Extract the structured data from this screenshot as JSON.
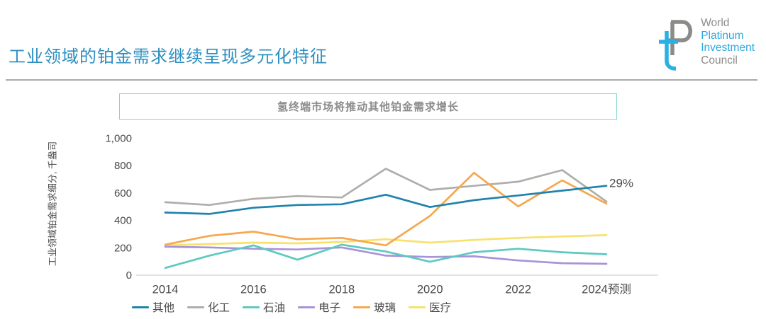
{
  "header": {
    "title": "工业领域的铂金需求继续呈现多元化特征",
    "title_color": "#2e8fc0"
  },
  "logo": {
    "name": "World Platinum Investment Council",
    "mark_icon": "wpic-tp-monogram",
    "mark_colors": {
      "p": "#8b8b88",
      "t": "#29b0e4"
    },
    "lines": [
      {
        "text": "World",
        "color": "#8b8b88"
      },
      {
        "text": "Platinum",
        "color": "#29a8df"
      },
      {
        "text": "Investment",
        "color": "#29a8df"
      },
      {
        "text": "Council",
        "color": "#8b8b88"
      }
    ]
  },
  "chart_box": {
    "title": "氢终端市场将推动其他铂金需求增长",
    "border_color": "#82d5d0"
  },
  "chart_data": {
    "type": "line",
    "title": "氢终端市场将推动其他铂金需求增长",
    "xlabel": "",
    "ylabel": "工业领域铂金需求细分, 千盎司",
    "x": [
      2014,
      2015,
      2016,
      2017,
      2018,
      2019,
      2020,
      2021,
      2022,
      2023,
      2024
    ],
    "x_tick_labels": [
      {
        "x": 2014,
        "label": "2014"
      },
      {
        "x": 2016,
        "label": "2016"
      },
      {
        "x": 2018,
        "label": "2018"
      },
      {
        "x": 2020,
        "label": "2020"
      },
      {
        "x": 2022,
        "label": "2022"
      },
      {
        "x": 2024,
        "label": "2024预测"
      }
    ],
    "ylim": [
      0,
      1000
    ],
    "y_ticks": [
      {
        "value": 0,
        "label": "0"
      },
      {
        "value": 200,
        "label": "200"
      },
      {
        "value": 400,
        "label": "400"
      },
      {
        "value": 600,
        "label": "600"
      },
      {
        "value": 800,
        "label": "800"
      },
      {
        "value": 1000,
        "label": "1,000"
      }
    ],
    "grid": false,
    "legend_position": "bottom",
    "series": [
      {
        "name": "其他",
        "color": "#1f83ae",
        "values": [
          455,
          445,
          490,
          510,
          515,
          585,
          495,
          545,
          580,
          615,
          650
        ]
      },
      {
        "name": "化工",
        "color": "#b0aeaa",
        "values": [
          530,
          510,
          555,
          575,
          565,
          775,
          620,
          650,
          680,
          765,
          535
        ]
      },
      {
        "name": "石油",
        "color": "#5fc8c1",
        "values": [
          50,
          140,
          215,
          110,
          220,
          170,
          95,
          165,
          190,
          165,
          150
        ]
      },
      {
        "name": "电子",
        "color": "#a893d8",
        "values": [
          205,
          200,
          190,
          185,
          200,
          140,
          130,
          135,
          105,
          85,
          80
        ]
      },
      {
        "name": "玻璃",
        "color": "#f5a84e",
        "values": [
          220,
          285,
          315,
          260,
          270,
          215,
          430,
          745,
          500,
          690,
          520
        ]
      },
      {
        "name": "医疗",
        "color": "#f8e16d",
        "values": [
          215,
          225,
          235,
          230,
          240,
          260,
          235,
          255,
          270,
          280,
          290
        ]
      }
    ],
    "annotations": [
      {
        "text": "29%",
        "x": 2024,
        "y": 650,
        "series": "其他",
        "color": "#4d4d4d"
      }
    ]
  }
}
